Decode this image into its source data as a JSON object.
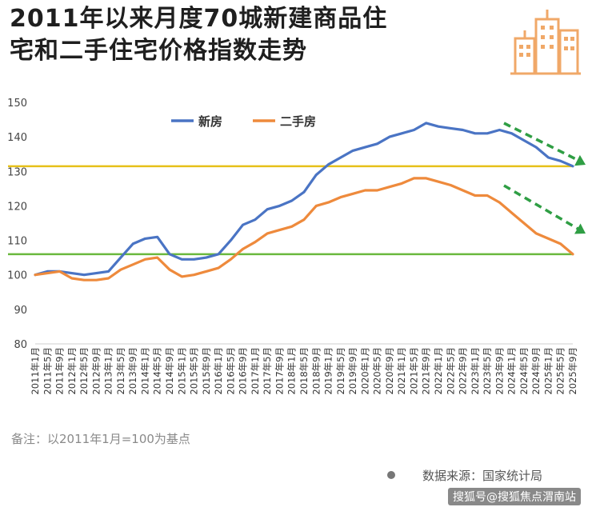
{
  "title_line1": "2011年以来月度70城新建商品住",
  "title_line2": "宅和二手住宅价格指数走势",
  "note": "备注：以2011年1月=100为基点",
  "source": "数据来源：国家统计局",
  "watermark": "搜狐号@搜狐焦点渭南站",
  "colors": {
    "new": "#4a74c4",
    "second": "#ee8a3c",
    "yellow": "#e6c01a",
    "green": "#6ab83e",
    "arrow": "#2f9e44",
    "logo": "#f0a868"
  },
  "chart_data": {
    "type": "line",
    "title": "",
    "xlabel": "",
    "ylabel": "",
    "ylim": [
      80,
      150
    ],
    "yticks": [
      80,
      90,
      100,
      110,
      120,
      130,
      140,
      150
    ],
    "grid": false,
    "legend_position": "top-left",
    "x_ticks": [
      "2011年1月",
      "2011年5月",
      "2011年9月",
      "2012年1月",
      "2012年5月",
      "2012年9月",
      "2013年1月",
      "2013年5月",
      "2013年9月",
      "2014年1月",
      "2014年5月",
      "2014年9月",
      "2015年1月",
      "2015年5月",
      "2015年9月",
      "2016年1月",
      "2016年5月",
      "2016年9月",
      "2017年1月",
      "2017年5月",
      "2017年9月",
      "2018年1月",
      "2018年5月",
      "2018年9月",
      "2019年1月",
      "2019年5月",
      "2019年9月",
      "2020年1月",
      "2020年5月",
      "2020年9月",
      "2021年1月",
      "2021年5月",
      "2021年9月",
      "2022年1月",
      "2022年5月",
      "2022年9月",
      "2023年1月",
      "2023年5月",
      "2023年9月",
      "2024年1月",
      "2024年5月",
      "2024年9月",
      "2025年1月",
      "2025年5月",
      "2025年9月"
    ],
    "series": [
      {
        "name": "新房",
        "values": [
          100,
          101,
          101,
          100.5,
          100,
          100.5,
          101,
          105,
          109,
          110.5,
          111,
          106,
          104.5,
          104.5,
          105,
          106,
          110,
          114.5,
          116,
          119,
          120,
          121.5,
          124,
          129,
          132,
          134,
          136,
          137,
          138,
          140,
          141,
          142,
          144,
          143,
          142.5,
          142,
          141,
          141,
          142,
          141,
          139,
          137,
          134,
          133,
          131.5
        ]
      },
      {
        "name": "二手房",
        "values": [
          100,
          100.5,
          101,
          99,
          98.5,
          98.5,
          99,
          101.5,
          103,
          104.5,
          105,
          101.5,
          99.5,
          100,
          101,
          102,
          104.5,
          107.5,
          109.5,
          112,
          113,
          114,
          116,
          120,
          121,
          122.5,
          123.5,
          124.5,
          124.5,
          125.5,
          126.5,
          128,
          128,
          127,
          126,
          124.5,
          123,
          123,
          121,
          118,
          115,
          112,
          110.5,
          109,
          106
        ]
      }
    ],
    "reference_lines": [
      131.5,
      106
    ],
    "annotations": [
      "↘ 新房下行趋势",
      "↘ 二手房下行趋势"
    ]
  }
}
